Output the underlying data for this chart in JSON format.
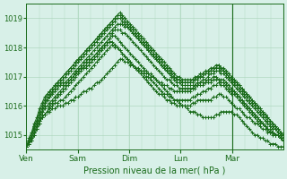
{
  "title": "",
  "xlabel": "Pression niveau de la mer( hPa )",
  "ylabel": "",
  "bg_color": "#d8f0e8",
  "plot_bg_color": "#d8f0e8",
  "line_color": "#1a6b1a",
  "grid_color": "#b0d8c0",
  "yticks": [
    1015,
    1016,
    1017,
    1018,
    1019
  ],
  "ylim": [
    1014.5,
    1019.5
  ],
  "day_labels": [
    "Ven",
    "Sam",
    "Dim",
    "Lun",
    "Mar"
  ],
  "day_positions": [
    0,
    24,
    48,
    72,
    96
  ],
  "total_hours": 120,
  "series": [
    [
      1014.6,
      1014.7,
      1014.9,
      1015.1,
      1015.3,
      1015.5,
      1015.6,
      1015.7,
      1015.8,
      1015.8,
      1015.9,
      1015.9,
      1016.0,
      1016.0,
      1016.0,
      1016.1,
      1016.1,
      1016.2,
      1016.2,
      1016.3,
      1016.3,
      1016.4,
      1016.5,
      1016.5,
      1016.6,
      1016.6,
      1016.7,
      1016.8,
      1016.8,
      1016.9,
      1017.0,
      1017.1,
      1017.2,
      1017.3,
      1017.4,
      1017.5,
      1017.6,
      1017.6,
      1017.5,
      1017.5,
      1017.4,
      1017.4,
      1017.3,
      1017.3,
      1017.2,
      1017.2,
      1017.1,
      1017.1,
      1017.1,
      1017.0,
      1016.9,
      1016.8,
      1016.7,
      1016.6,
      1016.5,
      1016.4,
      1016.3,
      1016.2,
      1016.2,
      1016.1,
      1016.0,
      1016.0,
      1015.9,
      1015.8,
      1015.8,
      1015.8,
      1015.7,
      1015.7,
      1015.6,
      1015.6,
      1015.6,
      1015.6,
      1015.6,
      1015.7,
      1015.7,
      1015.8,
      1015.8,
      1015.8,
      1015.8,
      1015.8,
      1015.7,
      1015.7,
      1015.6,
      1015.5,
      1015.4,
      1015.3,
      1015.2,
      1015.1,
      1015.0,
      1015.0,
      1014.9,
      1014.9,
      1014.8,
      1014.8,
      1014.7,
      1014.7,
      1014.7,
      1014.6,
      1014.6,
      1014.6
    ],
    [
      1014.6,
      1014.7,
      1014.8,
      1015.0,
      1015.2,
      1015.4,
      1015.6,
      1015.7,
      1015.8,
      1015.9,
      1016.0,
      1016.1,
      1016.1,
      1016.2,
      1016.2,
      1016.3,
      1016.4,
      1016.5,
      1016.6,
      1016.7,
      1016.8,
      1016.9,
      1017.0,
      1017.1,
      1017.2,
      1017.3,
      1017.4,
      1017.5,
      1017.6,
      1017.7,
      1017.8,
      1017.9,
      1018.0,
      1018.1,
      1018.0,
      1018.0,
      1017.9,
      1017.8,
      1017.7,
      1017.6,
      1017.5,
      1017.4,
      1017.3,
      1017.2,
      1017.1,
      1017.0,
      1016.9,
      1016.8,
      1016.7,
      1016.6,
      1016.5,
      1016.4,
      1016.4,
      1016.3,
      1016.2,
      1016.2,
      1016.1,
      1016.1,
      1016.0,
      1016.0,
      1016.0,
      1016.0,
      1016.0,
      1016.0,
      1016.1,
      1016.1,
      1016.2,
      1016.2,
      1016.2,
      1016.2,
      1016.2,
      1016.2,
      1016.3,
      1016.3,
      1016.4,
      1016.4,
      1016.3,
      1016.3,
      1016.2,
      1016.1,
      1016.0,
      1015.9,
      1015.9,
      1015.8,
      1015.7,
      1015.6,
      1015.6,
      1015.5,
      1015.4,
      1015.4,
      1015.3,
      1015.2,
      1015.2,
      1015.1,
      1015.1,
      1015.0,
      1015.0,
      1015.0,
      1014.9,
      1014.8
    ],
    [
      1014.6,
      1014.7,
      1014.8,
      1015.0,
      1015.2,
      1015.4,
      1015.6,
      1015.7,
      1015.8,
      1016.0,
      1016.1,
      1016.2,
      1016.3,
      1016.4,
      1016.5,
      1016.6,
      1016.7,
      1016.8,
      1016.9,
      1017.0,
      1017.1,
      1017.2,
      1017.3,
      1017.3,
      1017.4,
      1017.5,
      1017.6,
      1017.7,
      1017.8,
      1017.9,
      1018.0,
      1018.1,
      1018.2,
      1018.2,
      1018.1,
      1018.0,
      1017.9,
      1017.8,
      1017.7,
      1017.6,
      1017.5,
      1017.4,
      1017.3,
      1017.2,
      1017.2,
      1017.1,
      1017.0,
      1017.0,
      1016.9,
      1016.8,
      1016.7,
      1016.6,
      1016.5,
      1016.4,
      1016.4,
      1016.3,
      1016.3,
      1016.2,
      1016.2,
      1016.2,
      1016.2,
      1016.2,
      1016.2,
      1016.2,
      1016.3,
      1016.3,
      1016.4,
      1016.4,
      1016.5,
      1016.5,
      1016.6,
      1016.6,
      1016.7,
      1016.7,
      1016.8,
      1016.7,
      1016.7,
      1016.6,
      1016.5,
      1016.4,
      1016.4,
      1016.3,
      1016.2,
      1016.1,
      1016.0,
      1015.9,
      1015.8,
      1015.7,
      1015.6,
      1015.5,
      1015.4,
      1015.4,
      1015.3,
      1015.2,
      1015.2,
      1015.1,
      1015.0,
      1015.0,
      1014.9,
      1014.8
    ],
    [
      1014.6,
      1014.7,
      1014.9,
      1015.1,
      1015.3,
      1015.5,
      1015.7,
      1015.9,
      1016.0,
      1016.1,
      1016.2,
      1016.3,
      1016.4,
      1016.5,
      1016.6,
      1016.7,
      1016.8,
      1016.9,
      1017.0,
      1017.1,
      1017.2,
      1017.3,
      1017.3,
      1017.4,
      1017.5,
      1017.6,
      1017.7,
      1017.8,
      1017.9,
      1018.0,
      1018.1,
      1018.2,
      1018.3,
      1018.4,
      1018.4,
      1018.3,
      1018.2,
      1018.1,
      1018.0,
      1017.9,
      1017.8,
      1017.7,
      1017.6,
      1017.5,
      1017.4,
      1017.3,
      1017.2,
      1017.1,
      1017.0,
      1017.0,
      1016.9,
      1016.8,
      1016.8,
      1016.7,
      1016.7,
      1016.6,
      1016.6,
      1016.5,
      1016.5,
      1016.5,
      1016.5,
      1016.5,
      1016.5,
      1016.5,
      1016.6,
      1016.6,
      1016.7,
      1016.7,
      1016.7,
      1016.8,
      1016.8,
      1016.8,
      1016.9,
      1016.9,
      1016.9,
      1016.8,
      1016.8,
      1016.7,
      1016.6,
      1016.5,
      1016.5,
      1016.4,
      1016.3,
      1016.2,
      1016.1,
      1016.0,
      1015.9,
      1015.8,
      1015.7,
      1015.6,
      1015.5,
      1015.4,
      1015.3,
      1015.2,
      1015.1,
      1015.1,
      1015.0,
      1015.0,
      1014.9,
      1014.9
    ],
    [
      1014.6,
      1014.8,
      1015.0,
      1015.2,
      1015.4,
      1015.6,
      1015.8,
      1016.0,
      1016.2,
      1016.3,
      1016.4,
      1016.5,
      1016.6,
      1016.7,
      1016.7,
      1016.8,
      1016.8,
      1016.9,
      1017.0,
      1017.1,
      1017.2,
      1017.3,
      1017.4,
      1017.5,
      1017.6,
      1017.6,
      1017.7,
      1017.8,
      1017.9,
      1018.0,
      1018.1,
      1018.2,
      1018.3,
      1018.5,
      1018.6,
      1018.6,
      1018.6,
      1018.5,
      1018.5,
      1018.4,
      1018.3,
      1018.2,
      1018.1,
      1018.0,
      1017.9,
      1017.8,
      1017.7,
      1017.6,
      1017.5,
      1017.4,
      1017.3,
      1017.2,
      1017.1,
      1017.0,
      1016.9,
      1016.9,
      1016.8,
      1016.7,
      1016.7,
      1016.6,
      1016.6,
      1016.6,
      1016.6,
      1016.6,
      1016.6,
      1016.7,
      1016.7,
      1016.8,
      1016.8,
      1016.8,
      1016.9,
      1016.9,
      1017.0,
      1017.0,
      1016.9,
      1016.9,
      1016.9,
      1016.8,
      1016.7,
      1016.6,
      1016.5,
      1016.4,
      1016.3,
      1016.2,
      1016.1,
      1016.0,
      1015.9,
      1015.8,
      1015.7,
      1015.6,
      1015.5,
      1015.4,
      1015.3,
      1015.2,
      1015.1,
      1015.1,
      1015.0,
      1015.0,
      1014.9,
      1014.8
    ],
    [
      1014.6,
      1014.8,
      1015.0,
      1015.2,
      1015.4,
      1015.6,
      1015.8,
      1016.0,
      1016.2,
      1016.3,
      1016.5,
      1016.6,
      1016.7,
      1016.7,
      1016.8,
      1016.8,
      1016.9,
      1017.0,
      1017.1,
      1017.2,
      1017.3,
      1017.4,
      1017.5,
      1017.6,
      1017.7,
      1017.8,
      1017.9,
      1018.0,
      1018.1,
      1018.2,
      1018.3,
      1018.4,
      1018.5,
      1018.6,
      1018.7,
      1018.8,
      1018.8,
      1018.8,
      1018.7,
      1018.7,
      1018.6,
      1018.5,
      1018.4,
      1018.3,
      1018.2,
      1018.1,
      1018.0,
      1017.9,
      1017.8,
      1017.7,
      1017.6,
      1017.5,
      1017.4,
      1017.3,
      1017.2,
      1017.1,
      1017.0,
      1016.9,
      1016.8,
      1016.8,
      1016.7,
      1016.7,
      1016.7,
      1016.7,
      1016.7,
      1016.7,
      1016.8,
      1016.8,
      1016.9,
      1016.9,
      1017.0,
      1017.1,
      1017.1,
      1017.2,
      1017.2,
      1017.1,
      1017.1,
      1017.0,
      1016.9,
      1016.8,
      1016.7,
      1016.6,
      1016.5,
      1016.4,
      1016.3,
      1016.2,
      1016.1,
      1016.0,
      1015.9,
      1015.8,
      1015.7,
      1015.6,
      1015.5,
      1015.4,
      1015.3,
      1015.2,
      1015.2,
      1015.1,
      1015.0,
      1015.0
    ],
    [
      1014.6,
      1014.8,
      1015.0,
      1015.3,
      1015.5,
      1015.7,
      1015.9,
      1016.1,
      1016.3,
      1016.4,
      1016.5,
      1016.6,
      1016.7,
      1016.8,
      1016.9,
      1017.0,
      1017.1,
      1017.2,
      1017.3,
      1017.4,
      1017.5,
      1017.6,
      1017.7,
      1017.8,
      1017.9,
      1018.0,
      1018.1,
      1018.2,
      1018.3,
      1018.4,
      1018.5,
      1018.6,
      1018.7,
      1018.8,
      1018.9,
      1019.0,
      1019.0,
      1018.9,
      1018.8,
      1018.7,
      1018.6,
      1018.5,
      1018.4,
      1018.3,
      1018.2,
      1018.1,
      1018.0,
      1017.9,
      1017.8,
      1017.7,
      1017.6,
      1017.5,
      1017.4,
      1017.3,
      1017.2,
      1017.1,
      1017.0,
      1017.0,
      1016.9,
      1016.9,
      1016.8,
      1016.8,
      1016.8,
      1016.8,
      1016.8,
      1016.9,
      1016.9,
      1017.0,
      1017.0,
      1017.1,
      1017.1,
      1017.2,
      1017.2,
      1017.3,
      1017.3,
      1017.2,
      1017.2,
      1017.1,
      1017.0,
      1016.9,
      1016.8,
      1016.7,
      1016.6,
      1016.5,
      1016.4,
      1016.3,
      1016.2,
      1016.1,
      1016.0,
      1015.9,
      1015.8,
      1015.7,
      1015.6,
      1015.5,
      1015.4,
      1015.3,
      1015.2,
      1015.1,
      1015.0,
      1014.9
    ],
    [
      1014.6,
      1014.8,
      1015.0,
      1015.3,
      1015.5,
      1015.8,
      1016.0,
      1016.2,
      1016.4,
      1016.5,
      1016.6,
      1016.7,
      1016.8,
      1016.9,
      1017.0,
      1017.1,
      1017.2,
      1017.3,
      1017.4,
      1017.5,
      1017.6,
      1017.7,
      1017.8,
      1017.9,
      1018.0,
      1018.1,
      1018.2,
      1018.3,
      1018.4,
      1018.5,
      1018.6,
      1018.7,
      1018.8,
      1018.9,
      1019.0,
      1019.1,
      1019.1,
      1019.0,
      1018.9,
      1018.8,
      1018.7,
      1018.6,
      1018.5,
      1018.4,
      1018.3,
      1018.2,
      1018.1,
      1018.0,
      1017.9,
      1017.8,
      1017.7,
      1017.6,
      1017.5,
      1017.4,
      1017.3,
      1017.2,
      1017.1,
      1017.0,
      1016.9,
      1016.9,
      1016.8,
      1016.8,
      1016.8,
      1016.8,
      1016.9,
      1016.9,
      1017.0,
      1017.0,
      1017.1,
      1017.1,
      1017.2,
      1017.2,
      1017.3,
      1017.3,
      1017.4,
      1017.3,
      1017.2,
      1017.1,
      1017.0,
      1016.9,
      1016.9,
      1016.8,
      1016.7,
      1016.6,
      1016.5,
      1016.4,
      1016.3,
      1016.2,
      1016.1,
      1016.0,
      1015.9,
      1015.8,
      1015.7,
      1015.6,
      1015.5,
      1015.4,
      1015.3,
      1015.2,
      1015.1,
      1015.0
    ],
    [
      1014.6,
      1014.9,
      1015.1,
      1015.4,
      1015.6,
      1015.9,
      1016.1,
      1016.3,
      1016.4,
      1016.5,
      1016.6,
      1016.7,
      1016.8,
      1016.9,
      1017.0,
      1017.1,
      1017.2,
      1017.3,
      1017.4,
      1017.5,
      1017.6,
      1017.7,
      1017.8,
      1017.9,
      1018.0,
      1018.1,
      1018.2,
      1018.3,
      1018.4,
      1018.5,
      1018.6,
      1018.7,
      1018.8,
      1018.9,
      1019.0,
      1019.1,
      1019.2,
      1019.1,
      1019.0,
      1018.9,
      1018.8,
      1018.7,
      1018.6,
      1018.5,
      1018.4,
      1018.3,
      1018.2,
      1018.1,
      1018.0,
      1017.9,
      1017.8,
      1017.7,
      1017.6,
      1017.5,
      1017.4,
      1017.3,
      1017.2,
      1017.1,
      1017.0,
      1017.0,
      1016.9,
      1016.9,
      1016.9,
      1016.9,
      1016.9,
      1017.0,
      1017.0,
      1017.1,
      1017.1,
      1017.2,
      1017.2,
      1017.3,
      1017.3,
      1017.4,
      1017.4,
      1017.3,
      1017.3,
      1017.2,
      1017.1,
      1017.0,
      1016.9,
      1016.8,
      1016.7,
      1016.6,
      1016.5,
      1016.4,
      1016.3,
      1016.2,
      1016.1,
      1016.0,
      1015.9,
      1015.8,
      1015.7,
      1015.6,
      1015.5,
      1015.4,
      1015.3,
      1015.2,
      1015.1,
      1015.0
    ]
  ]
}
